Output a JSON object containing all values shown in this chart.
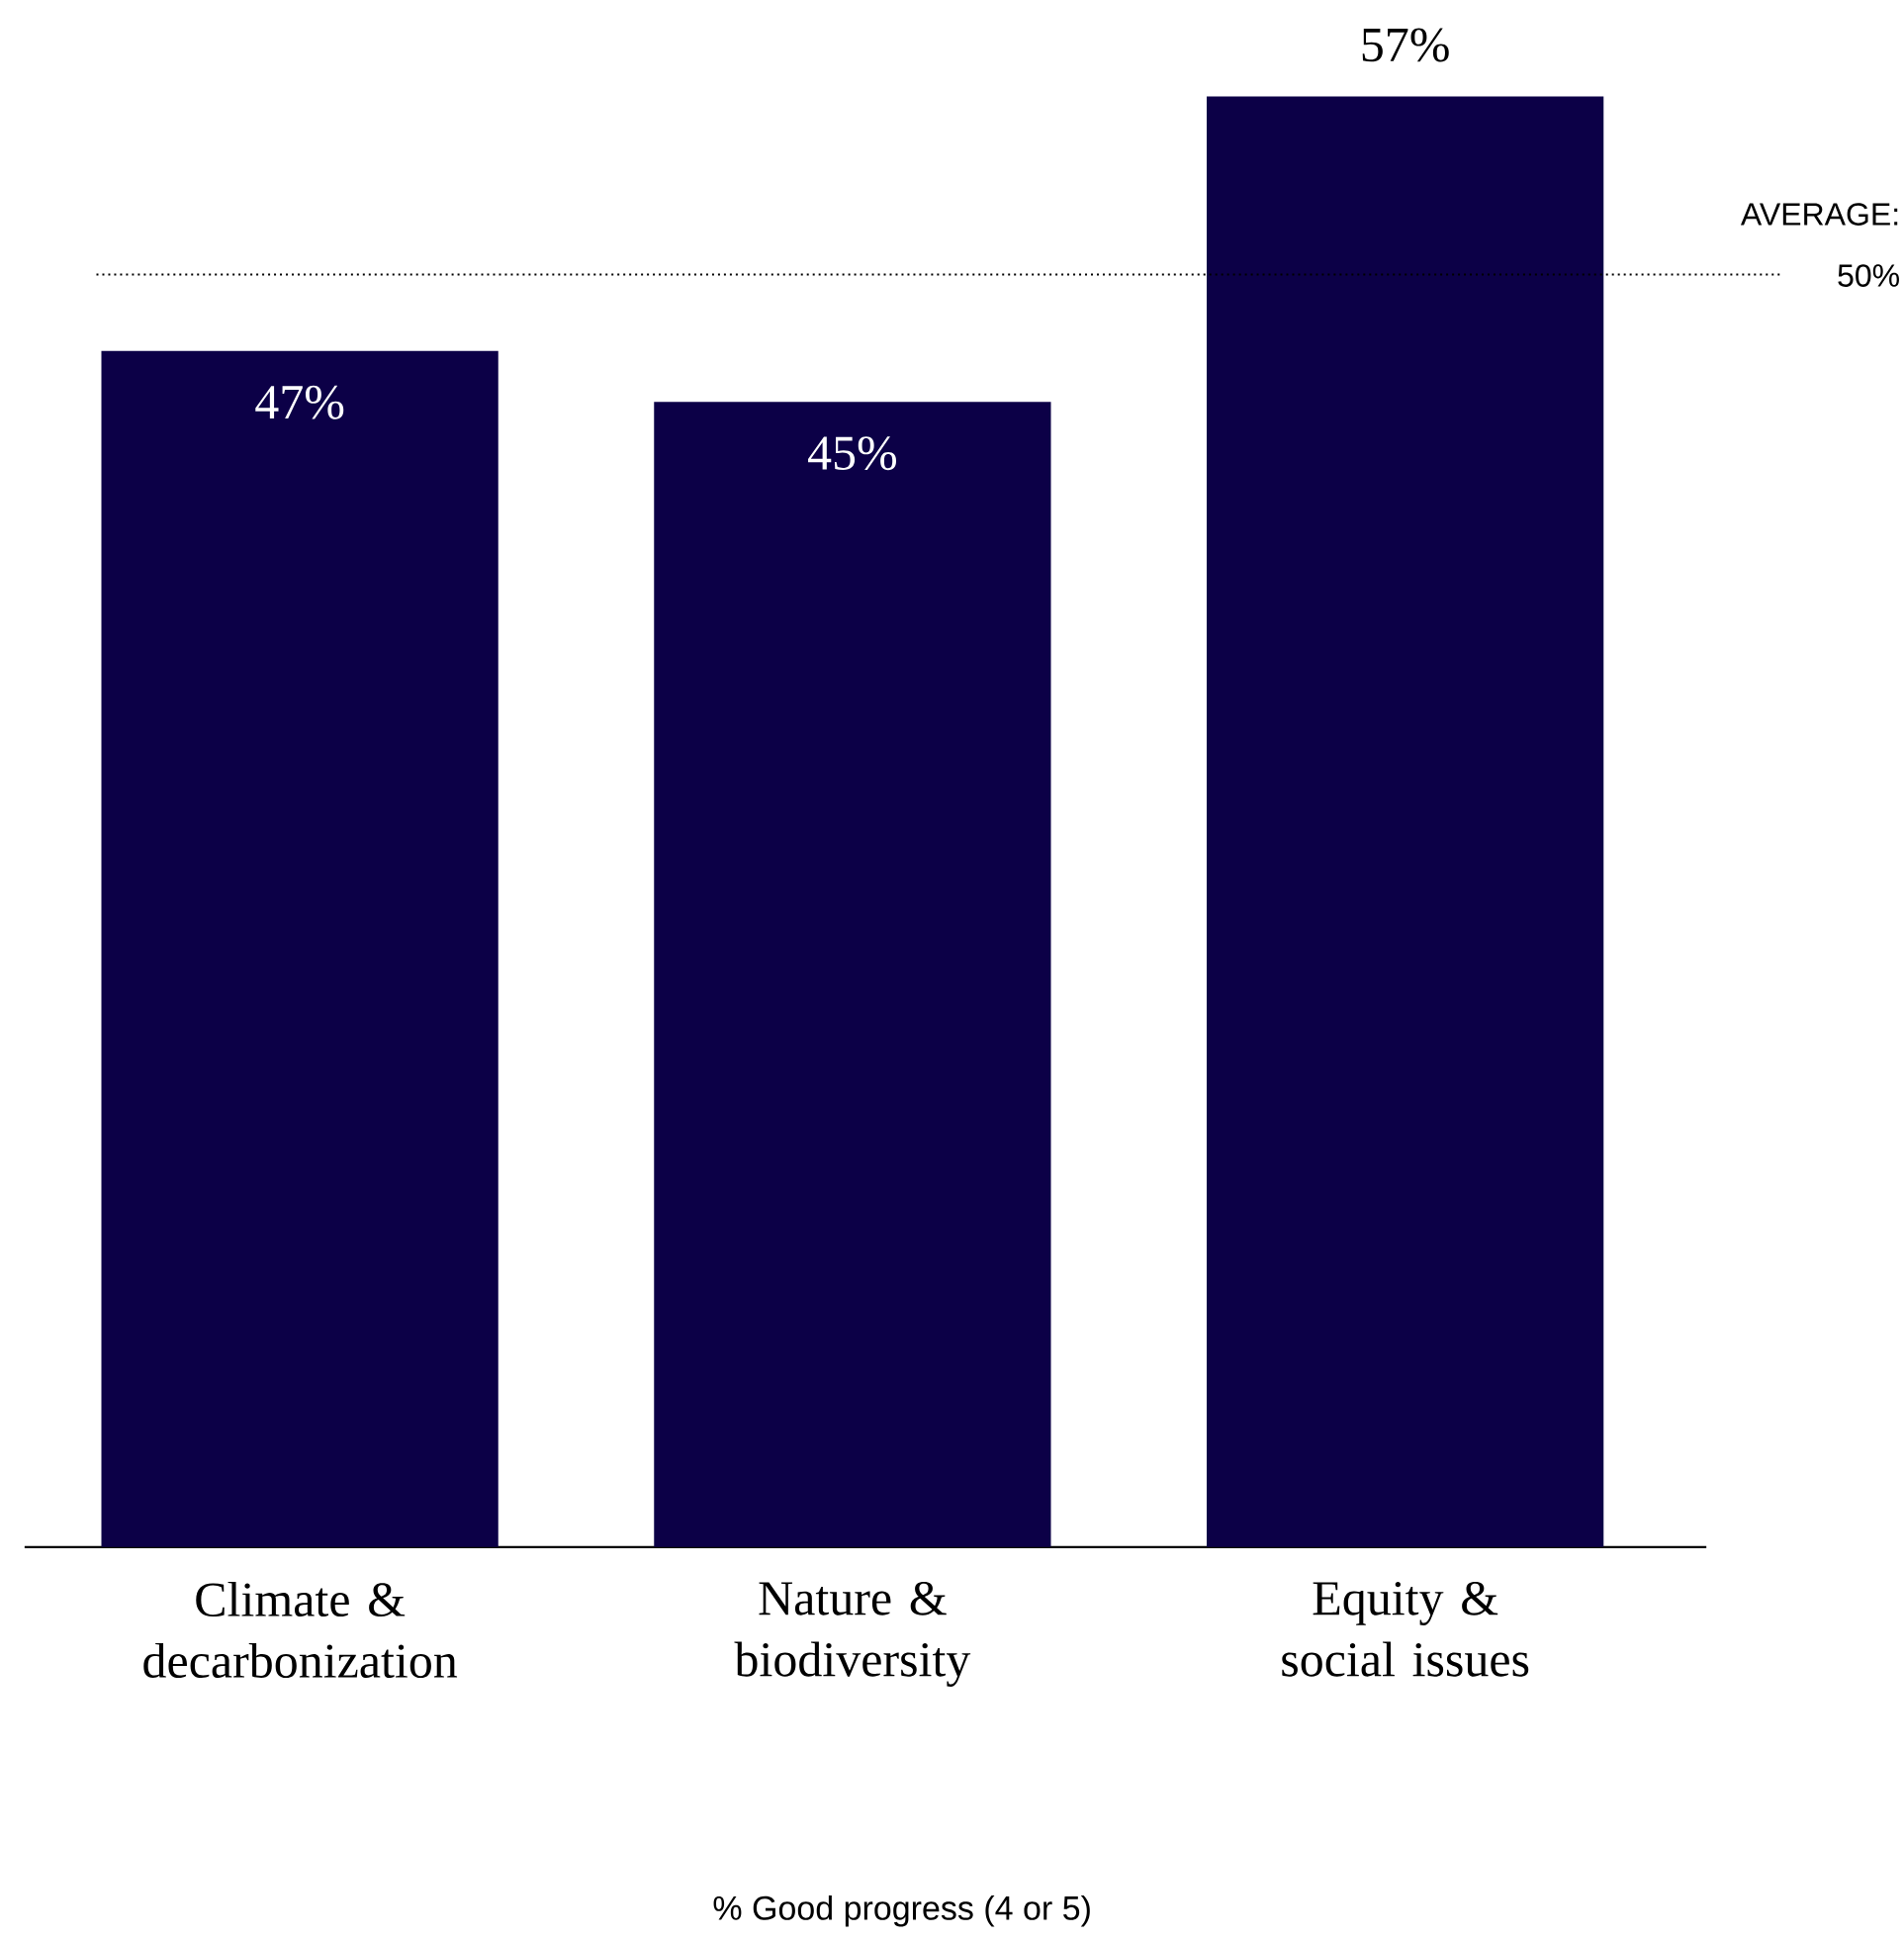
{
  "chart_data": {
    "type": "bar",
    "annotations": [
      "% Good progress (4 or 5)"
    ],
    "categories": [
      "Climate & decarbonization",
      "Nature & biodiversity",
      "Equity & social issues"
    ],
    "values": [
      47,
      45,
      57
    ],
    "value_labels": [
      "47%",
      "45%",
      "57%"
    ],
    "color": "#0c0047",
    "ref_lines": [
      {
        "axis": "y",
        "value": 50,
        "label": "AVERAGE: 50%",
        "line_style": "dotted",
        "color": "#000000"
      }
    ]
  }
}
